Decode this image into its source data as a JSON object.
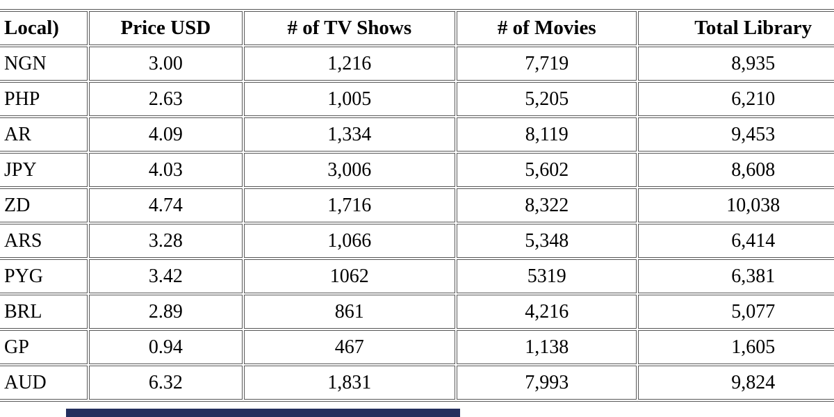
{
  "table": {
    "columns": [
      {
        "label": "Local)"
      },
      {
        "label": "Price USD"
      },
      {
        "label": "# of TV Shows"
      },
      {
        "label": "# of Movies"
      },
      {
        "label": "Total Library"
      }
    ],
    "rows": [
      [
        "NGN",
        "3.00",
        "1,216",
        "7,719",
        "8,935"
      ],
      [
        "PHP",
        "2.63",
        "1,005",
        "5,205",
        "6,210"
      ],
      [
        "AR",
        "4.09",
        "1,334",
        "8,119",
        "9,453"
      ],
      [
        "JPY",
        "4.03",
        "3,006",
        "5,602",
        "8,608"
      ],
      [
        "ZD",
        "4.74",
        "1,716",
        "8,322",
        "10,038"
      ],
      [
        "ARS",
        "3.28",
        "1,066",
        "5,348",
        "6,414"
      ],
      [
        "PYG",
        "3.42",
        "1062",
        "5319",
        "6,381"
      ],
      [
        "BRL",
        "2.89",
        "861",
        "4,216",
        "5,077"
      ],
      [
        "GP",
        "0.94",
        "467",
        "1,138",
        "1,605"
      ],
      [
        "AUD",
        "6.32",
        "1,831",
        "7,993",
        "9,824"
      ]
    ]
  },
  "colors": {
    "cell_border": "#565656",
    "text": "#000000",
    "background": "#ffffff",
    "scrollbar_thumb": "#232f5e"
  },
  "scrollbar": {
    "orientation": "horizontal"
  }
}
